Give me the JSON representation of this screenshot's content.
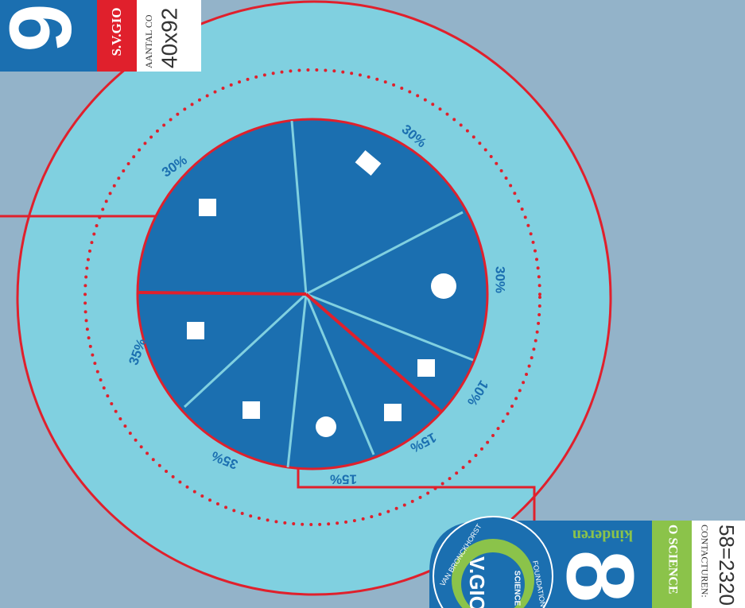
{
  "header_card": {
    "number": "9",
    "brand": "S.V.GIO",
    "caption": "AANTAL CO",
    "value": "40x92"
  },
  "pie_labels": [
    "30%",
    "30%",
    "30%",
    "10%",
    "15%",
    "15%",
    "35%",
    "35%"
  ],
  "footer_card": {
    "label": "kinderen",
    "number": "8",
    "logo_text": "V.GIO",
    "logo_sub": "SCIENCE",
    "ring_top": "VAN BRONCKHORST",
    "ring_bottom": "FOUNDATION",
    "band": "O SCIENCE",
    "caption": "CONTACTUREN:",
    "value": "58=2320"
  }
}
